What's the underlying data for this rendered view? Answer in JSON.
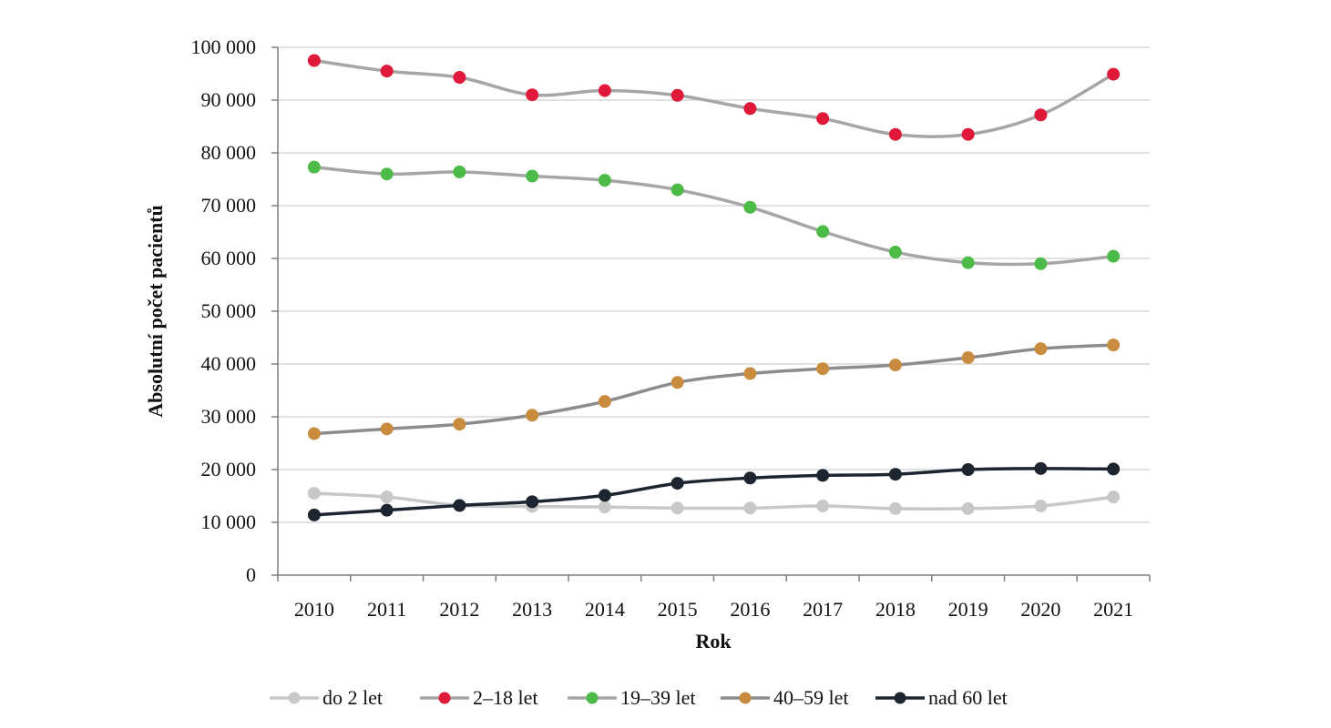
{
  "chart_data": {
    "type": "line",
    "title": "",
    "xlabel": "Rok",
    "ylabel": "Absolutní počet pacientů",
    "categories": [
      "2010",
      "2011",
      "2012",
      "2013",
      "2014",
      "2015",
      "2016",
      "2017",
      "2018",
      "2019",
      "2020",
      "2021"
    ],
    "y_ticks": [
      0,
      10000,
      20000,
      30000,
      40000,
      50000,
      60000,
      70000,
      80000,
      90000,
      100000
    ],
    "y_tick_labels": [
      "0",
      "10 000",
      "20 000",
      "30 000",
      "40 000",
      "50 000",
      "60 000",
      "70 000",
      "80 000",
      "90 000",
      "100 000"
    ],
    "ylim": [
      0,
      100000
    ],
    "grid": "horizontal",
    "legend_position": "bottom",
    "series": [
      {
        "name": "do 2 let",
        "marker_color": "#c8c8c8",
        "line_color": "#c8c8c8",
        "values": [
          15500,
          14800,
          13200,
          13000,
          12900,
          12700,
          12700,
          13100,
          12600,
          12600,
          13100,
          14800
        ]
      },
      {
        "name": "2–18 let",
        "marker_color": "#e0193a",
        "line_color": "#a6a6a6",
        "values": [
          97500,
          95500,
          94300,
          91000,
          91800,
          90900,
          88400,
          86500,
          83500,
          83500,
          87200,
          94900
        ]
      },
      {
        "name": "19–39 let",
        "marker_color": "#4cbb47",
        "line_color": "#a6a6a6",
        "values": [
          77300,
          76000,
          76400,
          75600,
          74800,
          73000,
          69700,
          65100,
          61200,
          59200,
          59000,
          60400
        ]
      },
      {
        "name": "40–59 let",
        "marker_color": "#c98c3e",
        "line_color": "#8c8c8c",
        "values": [
          26800,
          27700,
          28600,
          30300,
          32900,
          36500,
          38200,
          39100,
          39800,
          41200,
          42900,
          43600
        ]
      },
      {
        "name": "nad 60 let",
        "marker_color": "#1c2530",
        "line_color": "#1c2530",
        "values": [
          11400,
          12300,
          13200,
          13900,
          15100,
          17400,
          18400,
          18900,
          19100,
          20000,
          20200,
          20100
        ]
      }
    ]
  }
}
